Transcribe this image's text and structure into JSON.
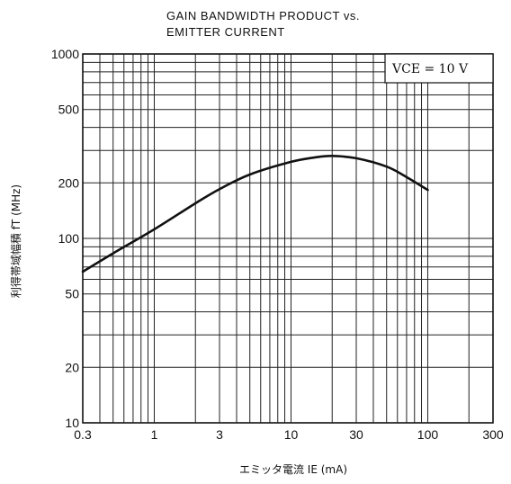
{
  "chart_data": {
    "type": "line",
    "title": "GAIN BANDWIDTH PRODUCT vs.",
    "subtitle": "EMITTER CURRENT",
    "xlabel": "エミッタ電流 IE (mA)",
    "ylabel": "利得帯域幅積 fT (MHz)",
    "x_scale": "log",
    "y_scale": "log",
    "xlim": [
      0.3,
      300
    ],
    "ylim": [
      10,
      1000
    ],
    "x_ticks": [
      {
        "value": 0.3,
        "label": "0.3"
      },
      {
        "value": 1,
        "label": "1"
      },
      {
        "value": 3,
        "label": "3"
      },
      {
        "value": 10,
        "label": "10"
      },
      {
        "value": 30,
        "label": "30"
      },
      {
        "value": 100,
        "label": "100"
      },
      {
        "value": 300,
        "label": "300"
      }
    ],
    "y_ticks": [
      {
        "value": 10,
        "label": "10"
      },
      {
        "value": 20,
        "label": "20"
      },
      {
        "value": 50,
        "label": "50"
      },
      {
        "value": 100,
        "label": "100"
      },
      {
        "value": 200,
        "label": "200"
      },
      {
        "value": 500,
        "label": "500"
      },
      {
        "value": 1000,
        "label": "1000"
      }
    ],
    "grid": true,
    "legend": {
      "text": "VCE =   10  V",
      "placement": "top-right"
    },
    "series": [
      {
        "x": [
          0.3,
          0.5,
          1,
          2,
          3,
          5,
          10,
          15,
          20,
          30,
          50,
          70,
          100
        ],
        "y": [
          66,
          83,
          112,
          155,
          185,
          222,
          260,
          275,
          280,
          272,
          245,
          215,
          183
        ]
      }
    ]
  }
}
